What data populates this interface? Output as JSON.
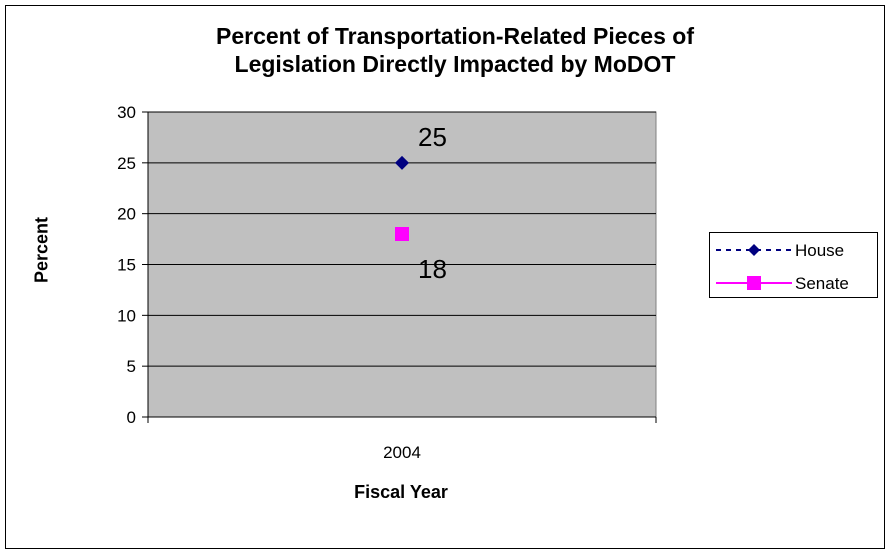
{
  "chart_data": {
    "type": "line",
    "title_lines": [
      "Percent of Transportation-Related Pieces of",
      "Legislation Directly Impacted by MoDOT"
    ],
    "xlabel": "Fiscal Year",
    "ylabel": "Percent",
    "categories": [
      "2004"
    ],
    "ylim": [
      0,
      30
    ],
    "yticks": [
      0,
      5,
      10,
      15,
      20,
      25,
      30
    ],
    "grid": true,
    "legend_position": "right",
    "series": [
      {
        "name": "House",
        "values": [
          25
        ],
        "labels": [
          "25"
        ],
        "color": "#000080",
        "marker": "diamond",
        "line_style": "dashed"
      },
      {
        "name": "Senate",
        "values": [
          18
        ],
        "labels": [
          "18"
        ],
        "color": "#ff00ff",
        "marker": "square",
        "line_style": "solid"
      }
    ],
    "plot_background": "#c0c0c0"
  }
}
